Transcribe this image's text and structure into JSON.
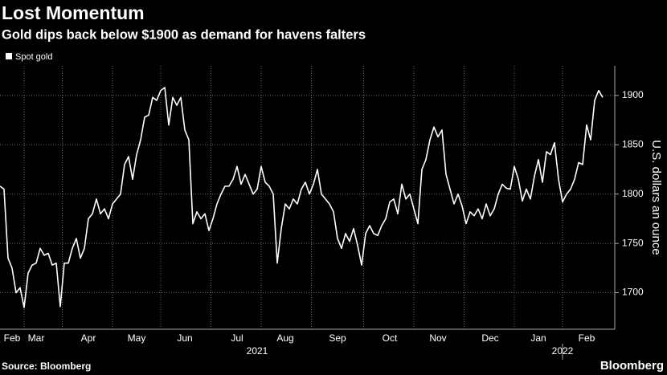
{
  "chart_data": {
    "type": "line",
    "title": "Lost Momentum",
    "subtitle": "Gold dips back below $1900 as demand for havens falters",
    "y_label": "U.S. dollars an ounce",
    "source": "Source: Bloomberg",
    "brand": "Bloomberg",
    "categories": [
      null,
      null,
      null,
      "Feb",
      null,
      null,
      null,
      null,
      null,
      "Mar",
      null,
      null,
      null,
      null,
      null,
      null,
      null,
      null,
      null,
      null,
      null,
      null,
      "Apr",
      null,
      null,
      null,
      null,
      null,
      null,
      null,
      null,
      null,
      null,
      null,
      "May",
      null,
      null,
      null,
      null,
      null,
      null,
      null,
      null,
      null,
      null,
      null,
      "Jun",
      null,
      null,
      null,
      null,
      null,
      null,
      null,
      null,
      null,
      null,
      null,
      null,
      "Jul",
      null,
      null,
      null,
      null,
      null,
      null,
      null,
      null,
      null,
      null,
      null,
      "Aug",
      null,
      null,
      null,
      null,
      null,
      null,
      null,
      null,
      null,
      null,
      null,
      null,
      "Sep",
      null,
      null,
      null,
      null,
      null,
      null,
      null,
      null,
      null,
      null,
      null,
      null,
      "Oct",
      null,
      null,
      null,
      null,
      null,
      null,
      null,
      null,
      null,
      null,
      null,
      "Nov",
      null,
      null,
      null,
      null,
      null,
      null,
      null,
      null,
      null,
      null,
      null,
      null,
      "Dec",
      null,
      null,
      null,
      null,
      null,
      null,
      null,
      null,
      null,
      null,
      null,
      "Jan",
      null,
      null,
      null,
      null,
      null,
      null,
      null,
      null,
      null,
      null,
      null,
      "Feb",
      null,
      null,
      null,
      null
    ],
    "year_labels": [
      null,
      null,
      null,
      null,
      null,
      null,
      null,
      null,
      null,
      null,
      null,
      null,
      null,
      null,
      null,
      null,
      null,
      null,
      null,
      null,
      null,
      null,
      null,
      null,
      null,
      null,
      null,
      null,
      null,
      null,
      null,
      null,
      null,
      null,
      null,
      null,
      null,
      null,
      null,
      null,
      null,
      null,
      null,
      null,
      null,
      null,
      null,
      null,
      null,
      null,
      null,
      null,
      null,
      null,
      null,
      null,
      null,
      null,
      null,
      null,
      null,
      null,
      null,
      null,
      "2021",
      null,
      null,
      null,
      null,
      null,
      null,
      null,
      null,
      null,
      null,
      null,
      null,
      null,
      null,
      null,
      null,
      null,
      null,
      null,
      null,
      null,
      null,
      null,
      null,
      null,
      null,
      null,
      null,
      null,
      null,
      null,
      null,
      null,
      null,
      null,
      null,
      null,
      null,
      null,
      null,
      null,
      null,
      null,
      null,
      null,
      null,
      null,
      null,
      null,
      null,
      null,
      null,
      null,
      null,
      null,
      null,
      null,
      null,
      null,
      null,
      null,
      null,
      null,
      null,
      null,
      null,
      null,
      null,
      null,
      null,
      null,
      null,
      null,
      null,
      null,
      "2022",
      null,
      null,
      null,
      null,
      null,
      null,
      null,
      null,
      null,
      null
    ],
    "series": [
      {
        "name": "Spot gold",
        "color": "#ffffff",
        "values": [
          1808,
          1805,
          1735,
          1725,
          1700,
          1705,
          1685,
          1720,
          1728,
          1730,
          1745,
          1738,
          1740,
          1728,
          1730,
          1686,
          1730,
          1730,
          1745,
          1755,
          1735,
          1745,
          1775,
          1780,
          1795,
          1780,
          1785,
          1775,
          1790,
          1795,
          1800,
          1830,
          1838,
          1815,
          1840,
          1855,
          1878,
          1880,
          1898,
          1895,
          1905,
          1908,
          1870,
          1898,
          1890,
          1898,
          1865,
          1855,
          1770,
          1782,
          1775,
          1780,
          1763,
          1775,
          1790,
          1800,
          1808,
          1808,
          1815,
          1828,
          1810,
          1820,
          1810,
          1800,
          1805,
          1828,
          1812,
          1808,
          1800,
          1730,
          1765,
          1790,
          1785,
          1795,
          1790,
          1805,
          1812,
          1800,
          1810,
          1825,
          1800,
          1795,
          1790,
          1782,
          1755,
          1745,
          1760,
          1752,
          1765,
          1748,
          1728,
          1760,
          1768,
          1760,
          1758,
          1768,
          1775,
          1792,
          1795,
          1780,
          1810,
          1795,
          1800,
          1785,
          1770,
          1825,
          1835,
          1855,
          1868,
          1858,
          1865,
          1820,
          1805,
          1790,
          1800,
          1788,
          1770,
          1782,
          1778,
          1785,
          1775,
          1790,
          1778,
          1785,
          1800,
          1810,
          1806,
          1805,
          1828,
          1815,
          1793,
          1805,
          1795,
          1818,
          1835,
          1812,
          1843,
          1840,
          1852,
          1815,
          1792,
          1800,
          1805,
          1815,
          1832,
          1830,
          1870,
          1855,
          1895,
          1905,
          1898
        ]
      }
    ],
    "ylim": [
      1663,
      1930
    ],
    "yticks": [
      1700,
      1750,
      1800,
      1850,
      1900
    ],
    "grid": true
  }
}
